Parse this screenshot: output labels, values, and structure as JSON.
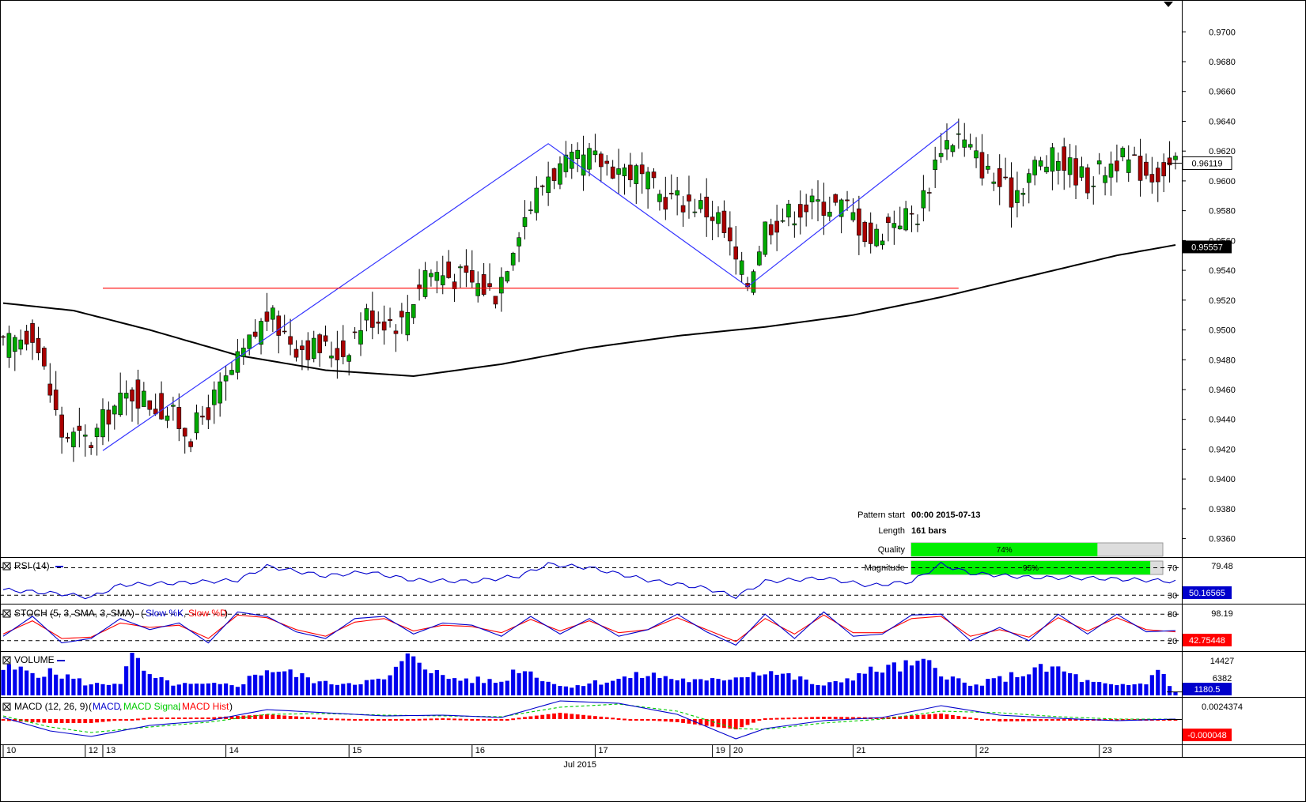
{
  "chart_data": [
    {
      "type": "candlestick",
      "panel": "price",
      "y_ticks": [
        "0.9700",
        "0.9680",
        "0.9660",
        "0.9640",
        "0.9620",
        "0.9600",
        "0.9580",
        "0.9560",
        "0.9540",
        "0.9520",
        "0.9500",
        "0.9480",
        "0.9460",
        "0.9440",
        "0.9420",
        "0.9400",
        "0.9380",
        "0.9360"
      ],
      "ylim": [
        0.9346,
        0.9715
      ],
      "current_price_label": "0.96119",
      "current_price": 0.96119,
      "ma_label": "0.95557",
      "ma_value": 0.95557,
      "pattern_info": {
        "pattern_start_label": "Pattern start",
        "pattern_start_value": "00:00 2015-07-13",
        "length_label": "Length",
        "length_value": "161 bars",
        "quality_label": "Quality",
        "quality_value": "74%",
        "quality": 0.74,
        "magnitude_label": "Magnitude",
        "magnitude_value": "95%",
        "magnitude": 0.95
      },
      "pattern_lines": [
        {
          "color": "#3333ff",
          "points": [
            [
              17,
              0.9419
            ],
            [
              93,
              0.9625
            ],
            [
              127,
              0.9529
            ],
            [
              163,
              0.964
            ]
          ]
        },
        {
          "color": "#ff0000",
          "points": [
            [
              17,
              0.9528
            ],
            [
              163,
              0.9528
            ]
          ]
        }
      ],
      "moving_average": [
        [
          0,
          0.9518
        ],
        [
          12,
          0.9513
        ],
        [
          25,
          0.95
        ],
        [
          40,
          0.9483
        ],
        [
          55,
          0.9473
        ],
        [
          70,
          0.9469
        ],
        [
          85,
          0.9477
        ],
        [
          100,
          0.9488
        ],
        [
          115,
          0.9496
        ],
        [
          130,
          0.9502
        ],
        [
          145,
          0.951
        ],
        [
          160,
          0.9522
        ],
        [
          175,
          0.9536
        ],
        [
          190,
          0.955
        ],
        [
          200,
          0.9557
        ]
      ],
      "candle_count": 201,
      "candle_anchors": [
        [
          0,
          0.9488
        ],
        [
          5,
          0.95
        ],
        [
          10,
          0.943
        ],
        [
          15,
          0.9425
        ],
        [
          18,
          0.9445
        ],
        [
          22,
          0.9458
        ],
        [
          28,
          0.9445
        ],
        [
          32,
          0.943
        ],
        [
          38,
          0.9465
        ],
        [
          45,
          0.951
        ],
        [
          50,
          0.949
        ],
        [
          58,
          0.9485
        ],
        [
          62,
          0.951
        ],
        [
          68,
          0.9505
        ],
        [
          72,
          0.954
        ],
        [
          78,
          0.9535
        ],
        [
          84,
          0.9525
        ],
        [
          88,
          0.957
        ],
        [
          93,
          0.9605
        ],
        [
          100,
          0.9615
        ],
        [
          108,
          0.9605
        ],
        [
          112,
          0.959
        ],
        [
          118,
          0.9585
        ],
        [
          122,
          0.9575
        ],
        [
          125,
          0.9545
        ],
        [
          127,
          0.9532
        ],
        [
          130,
          0.957
        ],
        [
          136,
          0.9582
        ],
        [
          140,
          0.9585
        ],
        [
          144,
          0.9582
        ],
        [
          148,
          0.956
        ],
        [
          152,
          0.9575
        ],
        [
          156,
          0.9578
        ],
        [
          158,
          0.96
        ],
        [
          160,
          0.9625
        ],
        [
          163,
          0.963
        ],
        [
          168,
          0.9605
        ],
        [
          172,
          0.959
        ],
        [
          176,
          0.961
        ],
        [
          180,
          0.9615
        ],
        [
          185,
          0.96
        ],
        [
          190,
          0.9615
        ],
        [
          196,
          0.9605
        ],
        [
          200,
          0.9612
        ]
      ],
      "x_ticks": [
        {
          "label": "10",
          "bar": 0
        },
        {
          "label": "12",
          "bar": 14
        },
        {
          "label": "13",
          "bar": 17
        },
        {
          "label": "14",
          "bar": 38
        },
        {
          "label": "15",
          "bar": 59
        },
        {
          "label": "16",
          "bar": 80
        },
        {
          "label": "17",
          "bar": 101
        },
        {
          "label": "19",
          "bar": 121
        },
        {
          "label": "20",
          "bar": 124
        },
        {
          "label": "21",
          "bar": 145
        },
        {
          "label": "22",
          "bar": 166
        },
        {
          "label": "23",
          "bar": 187
        }
      ],
      "x_axis_caption": "Jul 2015"
    },
    {
      "type": "line",
      "panel": "rsi",
      "title": "RSI (14)",
      "levels": [
        70,
        30
      ],
      "level_labels": [
        "70",
        "30"
      ],
      "top_label": "79.48",
      "ylim": [
        20,
        82
      ],
      "current_label": "50.16565",
      "current_value": 50.16565,
      "series_color": "#0000cc",
      "anchors": [
        [
          0,
          38
        ],
        [
          10,
          32
        ],
        [
          15,
          27
        ],
        [
          20,
          45
        ],
        [
          30,
          48
        ],
        [
          40,
          52
        ],
        [
          45,
          72
        ],
        [
          55,
          58
        ],
        [
          62,
          64
        ],
        [
          70,
          52
        ],
        [
          80,
          50
        ],
        [
          88,
          58
        ],
        [
          93,
          75
        ],
        [
          100,
          70
        ],
        [
          110,
          52
        ],
        [
          120,
          40
        ],
        [
          125,
          28
        ],
        [
          130,
          50
        ],
        [
          140,
          55
        ],
        [
          148,
          44
        ],
        [
          155,
          50
        ],
        [
          160,
          75
        ],
        [
          165,
          62
        ],
        [
          175,
          56
        ],
        [
          185,
          55
        ],
        [
          195,
          52
        ],
        [
          200,
          50
        ]
      ]
    },
    {
      "type": "line",
      "panel": "stoch",
      "title": "STOCH (5, 3, SMA, 3, SMA)",
      "legend": [
        {
          "name": "Slow %K",
          "color": "#0000cc"
        },
        {
          "name": "Slow %D",
          "color": "#ff0000"
        }
      ],
      "levels": [
        80,
        20
      ],
      "level_labels": [
        "80",
        "20"
      ],
      "top_label": "98.19",
      "ylim": [
        0,
        100
      ],
      "current_label": "42.75448",
      "current_value": 42.75448,
      "k_anchors": [
        [
          0,
          30
        ],
        [
          5,
          75
        ],
        [
          10,
          15
        ],
        [
          15,
          25
        ],
        [
          20,
          70
        ],
        [
          25,
          45
        ],
        [
          30,
          60
        ],
        [
          35,
          15
        ],
        [
          40,
          85
        ],
        [
          45,
          75
        ],
        [
          50,
          40
        ],
        [
          55,
          25
        ],
        [
          60,
          70
        ],
        [
          65,
          75
        ],
        [
          70,
          35
        ],
        [
          75,
          60
        ],
        [
          80,
          55
        ],
        [
          85,
          30
        ],
        [
          90,
          75
        ],
        [
          95,
          35
        ],
        [
          100,
          70
        ],
        [
          105,
          30
        ],
        [
          110,
          45
        ],
        [
          115,
          80
        ],
        [
          120,
          40
        ],
        [
          125,
          10
        ],
        [
          130,
          80
        ],
        [
          135,
          25
        ],
        [
          140,
          85
        ],
        [
          145,
          30
        ],
        [
          150,
          35
        ],
        [
          155,
          78
        ],
        [
          160,
          80
        ],
        [
          165,
          20
        ],
        [
          170,
          50
        ],
        [
          175,
          20
        ],
        [
          180,
          80
        ],
        [
          185,
          35
        ],
        [
          190,
          80
        ],
        [
          195,
          40
        ],
        [
          200,
          43
        ]
      ],
      "d_anchors": [
        [
          0,
          35
        ],
        [
          5,
          65
        ],
        [
          10,
          25
        ],
        [
          15,
          28
        ],
        [
          20,
          60
        ],
        [
          25,
          50
        ],
        [
          30,
          55
        ],
        [
          35,
          25
        ],
        [
          40,
          78
        ],
        [
          45,
          72
        ],
        [
          50,
          45
        ],
        [
          55,
          30
        ],
        [
          60,
          62
        ],
        [
          65,
          70
        ],
        [
          70,
          42
        ],
        [
          75,
          55
        ],
        [
          80,
          52
        ],
        [
          85,
          38
        ],
        [
          90,
          68
        ],
        [
          95,
          42
        ],
        [
          100,
          65
        ],
        [
          105,
          38
        ],
        [
          110,
          45
        ],
        [
          115,
          72
        ],
        [
          120,
          45
        ],
        [
          125,
          18
        ],
        [
          130,
          70
        ],
        [
          135,
          35
        ],
        [
          140,
          78
        ],
        [
          145,
          38
        ],
        [
          150,
          38
        ],
        [
          155,
          70
        ],
        [
          160,
          75
        ],
        [
          165,
          30
        ],
        [
          170,
          45
        ],
        [
          175,
          28
        ],
        [
          180,
          72
        ],
        [
          185,
          42
        ],
        [
          190,
          72
        ],
        [
          195,
          45
        ],
        [
          200,
          40
        ]
      ]
    },
    {
      "type": "bar",
      "panel": "volume",
      "title": "VOLUME",
      "legend_color": "#0000cc",
      "top_label": "14427",
      "mid_label": "6382",
      "ylim": [
        0,
        14427
      ],
      "current_label": "1180.5",
      "current_value": 1180.5,
      "anchors": [
        [
          0,
          9000
        ],
        [
          10,
          7000
        ],
        [
          15,
          3500
        ],
        [
          20,
          4500
        ],
        [
          22,
          13500
        ],
        [
          25,
          6000
        ],
        [
          30,
          3500
        ],
        [
          40,
          3500
        ],
        [
          45,
          9000
        ],
        [
          50,
          7000
        ],
        [
          55,
          4000
        ],
        [
          65,
          5000
        ],
        [
          70,
          14000
        ],
        [
          75,
          6000
        ],
        [
          85,
          4500
        ],
        [
          88,
          9500
        ],
        [
          92,
          6000
        ],
        [
          95,
          3000
        ],
        [
          100,
          4000
        ],
        [
          110,
          7000
        ],
        [
          115,
          5500
        ],
        [
          120,
          4500
        ],
        [
          125,
          6500
        ],
        [
          130,
          8500
        ],
        [
          135,
          6000
        ],
        [
          140,
          3000
        ],
        [
          145,
          6500
        ],
        [
          150,
          9000
        ],
        [
          158,
          10500
        ],
        [
          162,
          6000
        ],
        [
          165,
          3000
        ],
        [
          172,
          6500
        ],
        [
          176,
          8500
        ],
        [
          180,
          9000
        ],
        [
          185,
          4500
        ],
        [
          190,
          3000
        ],
        [
          195,
          4000
        ],
        [
          197,
          9500
        ],
        [
          200,
          1180
        ]
      ]
    },
    {
      "type": "line",
      "panel": "macd",
      "title": "MACD (12, 26, 9)",
      "legend": [
        {
          "name": "MACD",
          "color": "#0000cc"
        },
        {
          "name": "MACD Signal",
          "color": "#00cc00"
        },
        {
          "name": "MACD Hist",
          "color": "#ff0000"
        }
      ],
      "top_label": "0.0024374",
      "ylim": [
        -0.003,
        0.0026
      ],
      "current_label": "-0.000048",
      "current_value": -4.8e-05,
      "macd_anchors": [
        [
          0,
          0.0002
        ],
        [
          8,
          -0.0015
        ],
        [
          15,
          -0.0022
        ],
        [
          25,
          -0.0008
        ],
        [
          35,
          -0.0002
        ],
        [
          45,
          0.0012
        ],
        [
          55,
          0.0008
        ],
        [
          65,
          0.0004
        ],
        [
          75,
          0.0005
        ],
        [
          85,
          0.0002
        ],
        [
          95,
          0.0023
        ],
        [
          105,
          0.002
        ],
        [
          115,
          0.0006
        ],
        [
          125,
          -0.0025
        ],
        [
          130,
          -0.0012
        ],
        [
          140,
          -0.0002
        ],
        [
          150,
          0.0002
        ],
        [
          160,
          0.0017
        ],
        [
          170,
          0.0005
        ],
        [
          180,
          0.0001
        ],
        [
          190,
          -0.0002
        ],
        [
          200,
          0.0
        ]
      ],
      "signal_anchors": [
        [
          0,
          0.0004
        ],
        [
          8,
          -0.001
        ],
        [
          15,
          -0.0017
        ],
        [
          25,
          -0.001
        ],
        [
          35,
          -0.0004
        ],
        [
          45,
          0.0006
        ],
        [
          55,
          0.0007
        ],
        [
          65,
          0.0005
        ],
        [
          75,
          0.0004
        ],
        [
          85,
          0.0003
        ],
        [
          95,
          0.0015
        ],
        [
          105,
          0.0019
        ],
        [
          115,
          0.001
        ],
        [
          125,
          -0.0012
        ],
        [
          130,
          -0.0013
        ],
        [
          140,
          -0.0005
        ],
        [
          150,
          0.0
        ],
        [
          160,
          0.001
        ],
        [
          170,
          0.0008
        ],
        [
          180,
          0.0003
        ],
        [
          190,
          0.0
        ],
        [
          200,
          0.0
        ]
      ]
    }
  ]
}
